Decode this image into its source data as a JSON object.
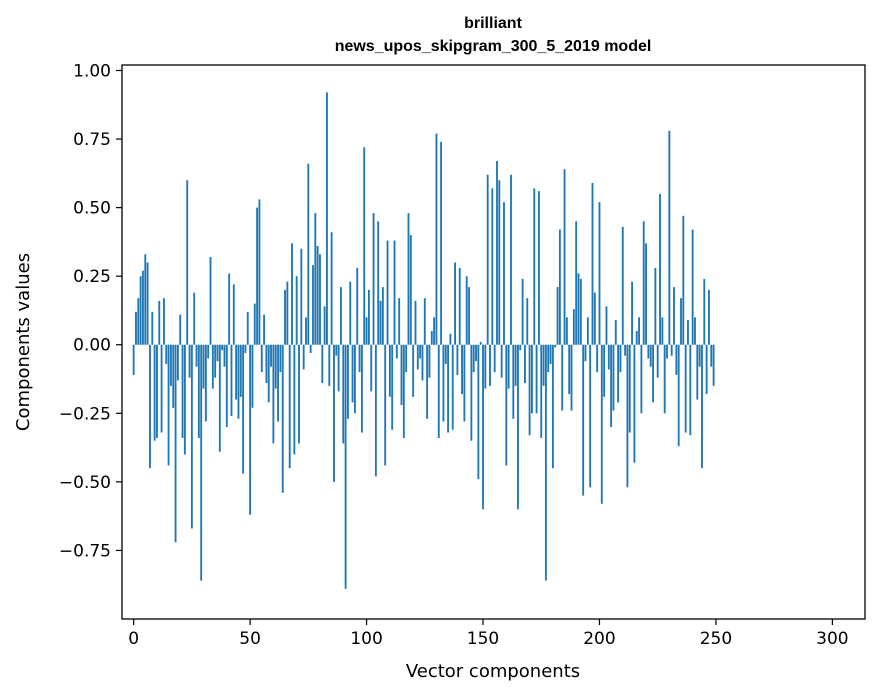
{
  "chart_data": {
    "type": "bar",
    "title_line1": "brilliant",
    "title_line2": "news_upos_skipgram_300_5_2019 model",
    "xlabel": "Vector components",
    "ylabel": "Components values",
    "xlim": [
      -5,
      314
    ],
    "ylim": [
      -1.0,
      1.02
    ],
    "xticks": [
      0,
      50,
      100,
      150,
      200,
      250,
      300
    ],
    "xtick_labels": [
      "0",
      "50",
      "100",
      "150",
      "200",
      "250",
      "300"
    ],
    "yticks": [
      1.0,
      0.75,
      0.5,
      0.25,
      0.0,
      -0.25,
      -0.5,
      -0.75
    ],
    "ytick_labels": [
      "1.00",
      "0.75",
      "0.50",
      "0.25",
      "0.00",
      "−0.25",
      "−0.50",
      "−0.75"
    ],
    "bar_color": "#1f77b4",
    "grid": false,
    "values": [
      -0.11,
      0.12,
      0.17,
      0.25,
      0.27,
      0.33,
      0.3,
      -0.45,
      0.12,
      -0.35,
      -0.34,
      0.16,
      -0.32,
      0.17,
      -0.07,
      -0.44,
      -0.15,
      -0.23,
      -0.72,
      -0.13,
      0.11,
      -0.34,
      -0.4,
      0.6,
      -0.12,
      -0.67,
      0.19,
      -0.08,
      -0.34,
      -0.86,
      -0.16,
      -0.28,
      -0.05,
      0.32,
      -0.16,
      -0.12,
      -0.06,
      -0.39,
      -0.02,
      -0.08,
      -0.3,
      0.26,
      -0.26,
      0.22,
      -0.2,
      -0.27,
      -0.19,
      -0.47,
      -0.03,
      0.12,
      -0.62,
      -0.23,
      0.15,
      0.5,
      0.53,
      -0.1,
      0.11,
      -0.14,
      -0.21,
      -0.08,
      -0.36,
      -0.16,
      -0.28,
      -0.1,
      -0.54,
      0.2,
      0.23,
      -0.45,
      0.37,
      -0.4,
      0.25,
      -0.36,
      0.35,
      -0.09,
      0.1,
      0.66,
      -0.03,
      0.29,
      0.48,
      0.36,
      0.33,
      -0.14,
      0.14,
      0.92,
      -0.15,
      0.41,
      -0.5,
      -0.04,
      -0.17,
      0.21,
      -0.36,
      -0.89,
      -0.27,
      0.23,
      -0.21,
      -0.25,
      0.28,
      -0.1,
      -0.32,
      0.72,
      0.1,
      0.2,
      -0.17,
      0.48,
      -0.48,
      0.45,
      0.16,
      0.21,
      -0.44,
      0.38,
      -0.19,
      -0.31,
      0.38,
      -0.05,
      0.17,
      -0.22,
      -0.34,
      -0.1,
      0.48,
      0.4,
      -0.19,
      0.16,
      -0.09,
      -0.05,
      -0.13,
      0.17,
      -0.27,
      -0.12,
      0.05,
      0.1,
      0.77,
      -0.34,
      0.74,
      -0.28,
      -0.07,
      -0.32,
      0.04,
      -0.31,
      0.3,
      -0.11,
      0.28,
      -0.18,
      -0.28,
      0.25,
      0.21,
      -0.35,
      -0.1,
      -0.06,
      -0.49,
      0.01,
      -0.6,
      -0.16,
      0.62,
      -0.15,
      0.57,
      -0.1,
      0.67,
      0.6,
      -0.12,
      0.52,
      -0.44,
      -0.16,
      0.62,
      -0.27,
      -0.15,
      -0.6,
      -0.02,
      0.24,
      -0.14,
      0.17,
      -0.33,
      -0.25,
      0.57,
      -0.25,
      0.56,
      -0.34,
      -0.15,
      -0.86,
      -0.1,
      -0.07,
      -0.45,
      -0.01,
      0.21,
      0.42,
      -0.24,
      0.64,
      0.1,
      -0.18,
      -0.24,
      0.13,
      0.45,
      0.26,
      0.24,
      -0.55,
      -0.06,
      0.1,
      -0.52,
      0.59,
      0.19,
      -0.1,
      0.52,
      -0.58,
      -0.19,
      0.14,
      -0.09,
      -0.3,
      -0.24,
      0.09,
      -0.21,
      -0.1,
      0.43,
      -0.04,
      -0.52,
      -0.32,
      0.23,
      -0.43,
      0.05,
      0.1,
      -0.25,
      0.45,
      0.37,
      -0.05,
      -0.08,
      -0.21,
      0.28,
      -0.12,
      0.55,
      0.1,
      -0.25,
      -0.05,
      0.78,
      -0.04,
      0.21,
      -0.11,
      -0.37,
      0.17,
      0.47,
      -0.32,
      0.09,
      -0.33,
      0.42,
      0.1,
      -0.2,
      -0.08,
      -0.45,
      0.24,
      -0.18,
      0.2,
      -0.08,
      -0.15
    ]
  }
}
